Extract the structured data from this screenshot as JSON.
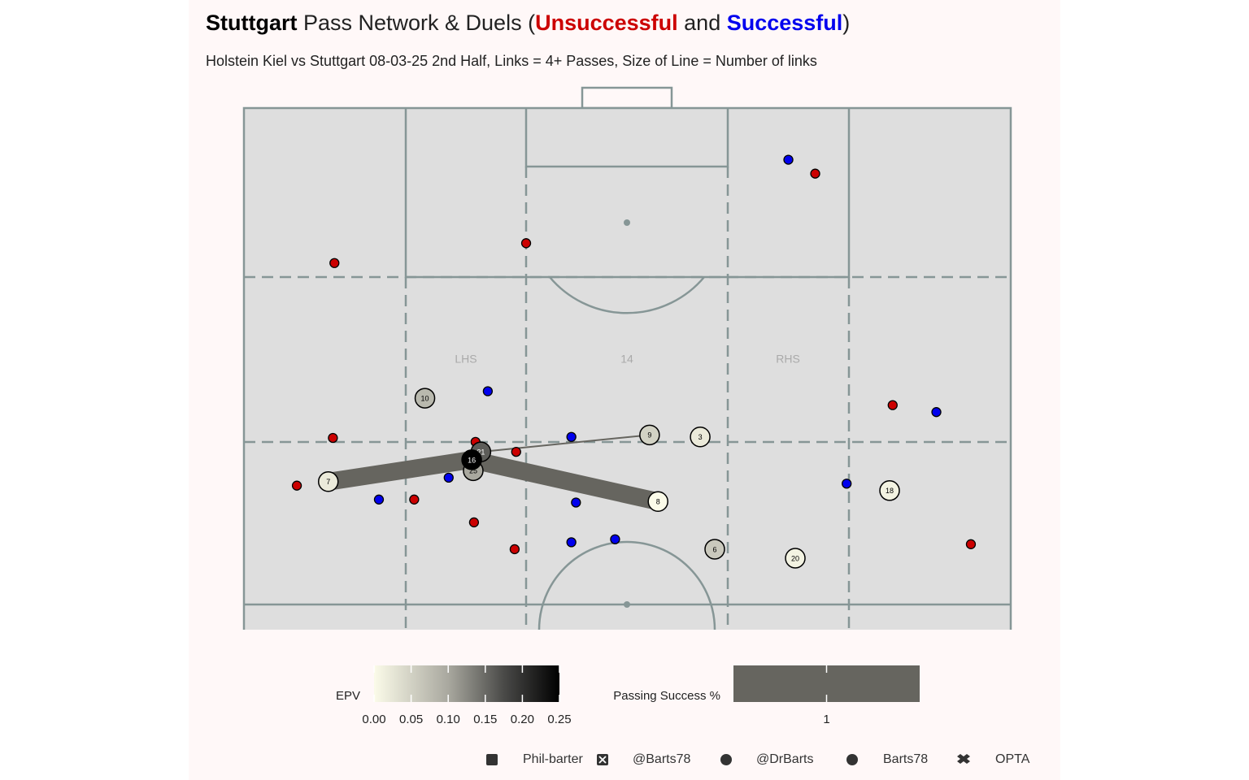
{
  "chart_data": {
    "type": "pass_network",
    "title": [
      "Stuttgart",
      " Pass Network & Duels (",
      " and ",
      ")"
    ],
    "subtitle": "Holstein Kiel vs Stuttgart 08-03-25 2nd Half, Links = 4+ Passes, Size of Line = Number of links",
    "zone_labels": [
      "LHS",
      "14",
      "RHS"
    ],
    "xlim": [
      0,
      100
    ],
    "ylim": [
      47.5,
      100
    ],
    "duels": [
      {
        "name": "Unsuccessful",
        "color": "#cc0000",
        "x": [
          74.5,
          36.8,
          11.8,
          11.6,
          30.2,
          35.5,
          6.9,
          22.2,
          30.0,
          35.3,
          84.6,
          94.8
        ],
        "y": [
          93.4,
          86.4,
          84.4,
          66.8,
          66.4,
          65.4,
          62.0,
          60.6,
          58.3,
          55.6,
          70.1,
          56.1
        ]
      },
      {
        "name": "Successful",
        "color": "#0000ee",
        "x": [
          71.0,
          31.8,
          42.7,
          26.7,
          17.6,
          43.3,
          42.7,
          48.4,
          90.3,
          78.6
        ],
        "y": [
          94.8,
          71.5,
          66.9,
          62.8,
          60.6,
          60.3,
          56.3,
          56.6,
          69.4,
          62.2
        ]
      }
    ],
    "players": [
      {
        "number": 7,
        "x": 11.0,
        "y": 62.4,
        "epv": 0.02
      },
      {
        "number": 10,
        "x": 23.6,
        "y": 70.8,
        "epv": 0.08
      },
      {
        "number": 21,
        "x": 30.9,
        "y": 65.4,
        "epv": 0.16
      },
      {
        "number": 25,
        "x": 29.9,
        "y": 63.5,
        "epv": 0.1
      },
      {
        "number": 16,
        "x": 29.7,
        "y": 64.6,
        "epv": 0.25
      },
      {
        "number": 9,
        "x": 52.9,
        "y": 67.1,
        "epv": 0.05
      },
      {
        "number": 3,
        "x": 59.5,
        "y": 66.9,
        "epv": 0.02
      },
      {
        "number": 8,
        "x": 54.0,
        "y": 60.4,
        "epv": 0.0
      },
      {
        "number": 6,
        "x": 61.4,
        "y": 55.6,
        "epv": 0.06
      },
      {
        "number": 18,
        "x": 84.2,
        "y": 61.5,
        "epv": 0.01
      },
      {
        "number": 20,
        "x": 71.9,
        "y": 54.7,
        "epv": 0.01
      }
    ],
    "links": [
      {
        "from": 7,
        "to": 16,
        "count": 10,
        "success": 1
      },
      {
        "from": 16,
        "to": 8,
        "count": 10,
        "success": 1
      },
      {
        "from": 21,
        "to": 9,
        "count": 4,
        "success": 1
      }
    ],
    "link_color": "#66655f",
    "epv_legend": {
      "title": "EPV",
      "lim": [
        0,
        0.25
      ],
      "ticks": [
        {
          "value": 0,
          "label": "0.00"
        },
        {
          "value": 0.05,
          "label": "0.05"
        },
        {
          "value": 0.1,
          "label": "0.10"
        },
        {
          "value": 0.15,
          "label": "0.15"
        },
        {
          "value": 0.2,
          "label": "0.20"
        },
        {
          "value": 0.25,
          "label": "0.25"
        }
      ]
    },
    "success_legend": {
      "title": "Passing Success %",
      "ticks": [
        1
      ]
    },
    "credits": [
      "Phil-barter",
      "@Barts78",
      "@DrBarts",
      "Barts78",
      "OPTA"
    ]
  }
}
